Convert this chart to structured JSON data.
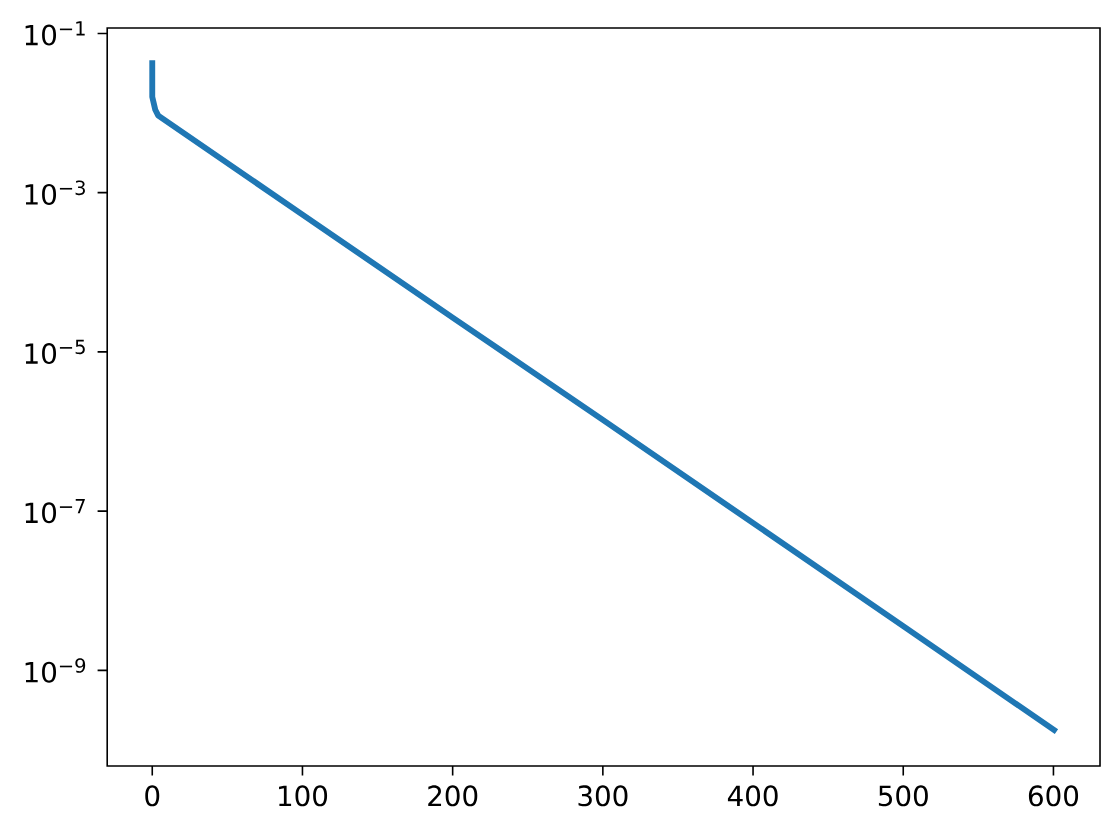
{
  "chart_data": {
    "type": "line",
    "log": "y",
    "color": "#1f77b4",
    "x": [
      0,
      0,
      2,
      4,
      100,
      200,
      300,
      400,
      500,
      602
    ],
    "values": [
      0.046,
      0.016,
      0.011,
      0.0093,
      0.00053,
      2.7e-05,
      1.4e-06,
      7.1e-08,
      3.6e-09,
      1.7e-10
    ],
    "xlim": [
      -30,
      631
    ],
    "ylim": [
      6.3e-11,
      0.117
    ],
    "xticks": [
      0,
      100,
      200,
      300,
      400,
      500,
      600
    ],
    "yticks": [
      {
        "value": 0.1,
        "label": "10$^{−1}$"
      },
      {
        "value": 0.001,
        "label": "10$^{−3}$"
      },
      {
        "value": 1e-05,
        "label": "10$^{−5}$"
      },
      {
        "value": 1e-07,
        "label": "10$^{−7}$"
      },
      {
        "value": 1e-09,
        "label": "10$^{−9}$"
      }
    ]
  }
}
